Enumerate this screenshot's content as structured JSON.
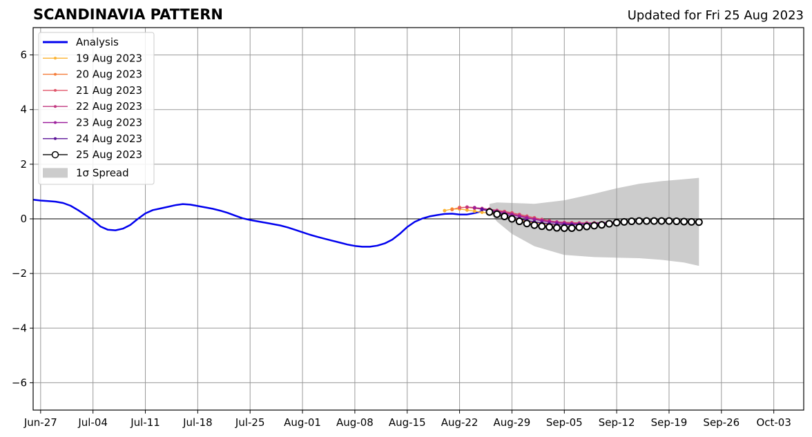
{
  "title": "SCANDINAVIA PATTERN",
  "updated": "Updated for Fri 25 Aug 2023",
  "chart_data": {
    "type": "line",
    "title": "SCANDINAVIA PATTERN",
    "subtitle": "Updated for Fri 25 Aug 2023",
    "xlabel": "",
    "ylabel": "",
    "xlim": [
      "2023-06-26",
      "2023-10-07"
    ],
    "ylim": [
      -7,
      7
    ],
    "grid": true,
    "legend_position": "top-left",
    "x_ticks": [
      "Jun-27",
      "Jul-04",
      "Jul-11",
      "Jul-18",
      "Jul-25",
      "Aug-01",
      "Aug-08",
      "Aug-15",
      "Aug-22",
      "Aug-29",
      "Sep-05",
      "Sep-12",
      "Sep-19",
      "Sep-26",
      "Oct-03"
    ],
    "x_tick_dates": [
      "2023-06-27",
      "2023-07-04",
      "2023-07-11",
      "2023-07-18",
      "2023-07-25",
      "2023-08-01",
      "2023-08-08",
      "2023-08-15",
      "2023-08-22",
      "2023-08-29",
      "2023-09-05",
      "2023-09-12",
      "2023-09-19",
      "2023-09-26",
      "2023-10-03"
    ],
    "y_ticks": [
      -6,
      -4,
      -2,
      0,
      2,
      4,
      6
    ],
    "y_tick_labels": [
      "−6",
      "−4",
      "−2",
      "0",
      "2",
      "4",
      "6"
    ],
    "legend": [
      "Analysis",
      "19 Aug 2023",
      "20 Aug 2023",
      "21 Aug 2023",
      "22 Aug 2023",
      "23 Aug 2023",
      "24 Aug 2023",
      "25 Aug 2023",
      "1σ Spread"
    ],
    "analysis": {
      "name": "Analysis",
      "color": "#0000ee",
      "start": "2023-06-26",
      "values": [
        0.7,
        0.67,
        0.65,
        0.63,
        0.58,
        0.48,
        0.32,
        0.14,
        -0.05,
        -0.28,
        -0.4,
        -0.42,
        -0.36,
        -0.22,
        0.0,
        0.2,
        0.32,
        0.38,
        0.44,
        0.5,
        0.54,
        0.52,
        0.47,
        0.42,
        0.37,
        0.3,
        0.22,
        0.12,
        0.02,
        -0.04,
        -0.09,
        -0.14,
        -0.19,
        -0.24,
        -0.31,
        -0.4,
        -0.49,
        -0.58,
        -0.66,
        -0.73,
        -0.8,
        -0.87,
        -0.94,
        -0.99,
        -1.02,
        -1.02,
        -0.98,
        -0.9,
        -0.76,
        -0.55,
        -0.3,
        -0.11,
        0.01,
        0.09,
        0.14,
        0.18,
        0.19,
        0.16,
        0.16,
        0.21,
        0.28
      ]
    },
    "forecasts": [
      {
        "name": "19 Aug 2023",
        "color": "#fcb330",
        "start": "2023-08-20",
        "values": [
          0.3,
          0.36,
          0.36,
          0.32,
          0.28,
          0.24,
          0.2,
          0.16,
          0.1,
          0.03,
          -0.04,
          -0.1,
          -0.14,
          -0.18,
          -0.2,
          -0.21,
          -0.21,
          -0.2,
          -0.19,
          -0.18,
          -0.16,
          -0.15
        ]
      },
      {
        "name": "20 Aug 2023",
        "color": "#f57d3a",
        "start": "2023-08-21",
        "values": [
          0.34,
          0.42,
          0.42,
          0.39,
          0.35,
          0.32,
          0.28,
          0.23,
          0.18,
          0.12,
          0.06,
          0.0,
          -0.06,
          -0.1,
          -0.13,
          -0.15,
          -0.16,
          -0.16,
          -0.16,
          -0.15,
          -0.14,
          -0.13
        ]
      },
      {
        "name": "21 Aug 2023",
        "color": "#e0556a",
        "start": "2023-08-22",
        "values": [
          0.4,
          0.43,
          0.41,
          0.38,
          0.35,
          0.31,
          0.27,
          0.22,
          0.16,
          0.1,
          0.04,
          -0.02,
          -0.07,
          -0.11,
          -0.13,
          -0.14,
          -0.15,
          -0.15,
          -0.15,
          -0.14,
          -0.13,
          -0.12
        ]
      },
      {
        "name": "22 Aug 2023",
        "color": "#c1357e",
        "start": "2023-08-23",
        "values": [
          0.43,
          0.41,
          0.38,
          0.35,
          0.3,
          0.24,
          0.18,
          0.12,
          0.06,
          0.0,
          -0.05,
          -0.09,
          -0.12,
          -0.14,
          -0.16,
          -0.16,
          -0.16,
          -0.15,
          -0.14,
          -0.13,
          -0.12,
          -0.11
        ]
      },
      {
        "name": "23 Aug 2023",
        "color": "#9c1f9c",
        "start": "2023-08-24",
        "values": [
          0.4,
          0.36,
          0.32,
          0.27,
          0.21,
          0.15,
          0.09,
          0.03,
          -0.02,
          -0.07,
          -0.11,
          -0.14,
          -0.17,
          -0.19,
          -0.19,
          -0.19,
          -0.18,
          -0.17,
          -0.16,
          -0.14,
          -0.13,
          -0.12
        ]
      },
      {
        "name": "24 Aug 2023",
        "color": "#5a1197",
        "start": "2023-08-25",
        "values": [
          0.34,
          0.29,
          0.23,
          0.16,
          0.08,
          0.0,
          -0.06,
          -0.11,
          -0.15,
          -0.18,
          -0.2,
          -0.21,
          -0.21,
          -0.2,
          -0.19,
          -0.17,
          -0.15,
          -0.14,
          -0.13,
          -0.12,
          -0.11,
          -0.11
        ]
      }
    ],
    "latest": {
      "name": "25 Aug 2023",
      "color": "#000000",
      "start": "2023-08-26",
      "values": [
        0.25,
        0.17,
        0.09,
        0.0,
        -0.09,
        -0.17,
        -0.23,
        -0.27,
        -0.3,
        -0.33,
        -0.34,
        -0.34,
        -0.31,
        -0.28,
        -0.25,
        -0.22,
        -0.18,
        -0.14,
        -0.11,
        -0.09,
        -0.08,
        -0.08,
        -0.08,
        -0.08,
        -0.08,
        -0.09,
        -0.1,
        -0.11,
        -0.12
      ]
    },
    "spread": {
      "name": "1σ Spread",
      "color": "#cccccc",
      "x": [
        "2023-08-26",
        "2023-08-27",
        "2023-08-29",
        "2023-09-01",
        "2023-09-05",
        "2023-09-09",
        "2023-09-12",
        "2023-09-15",
        "2023-09-18",
        "2023-09-21",
        "2023-09-23"
      ],
      "upper": [
        0.55,
        0.6,
        0.58,
        0.55,
        0.68,
        0.92,
        1.12,
        1.28,
        1.38,
        1.45,
        1.5
      ],
      "lower": [
        0.25,
        -0.1,
        -0.55,
        -1.0,
        -1.32,
        -1.4,
        -1.42,
        -1.44,
        -1.5,
        -1.6,
        -1.72
      ]
    }
  }
}
